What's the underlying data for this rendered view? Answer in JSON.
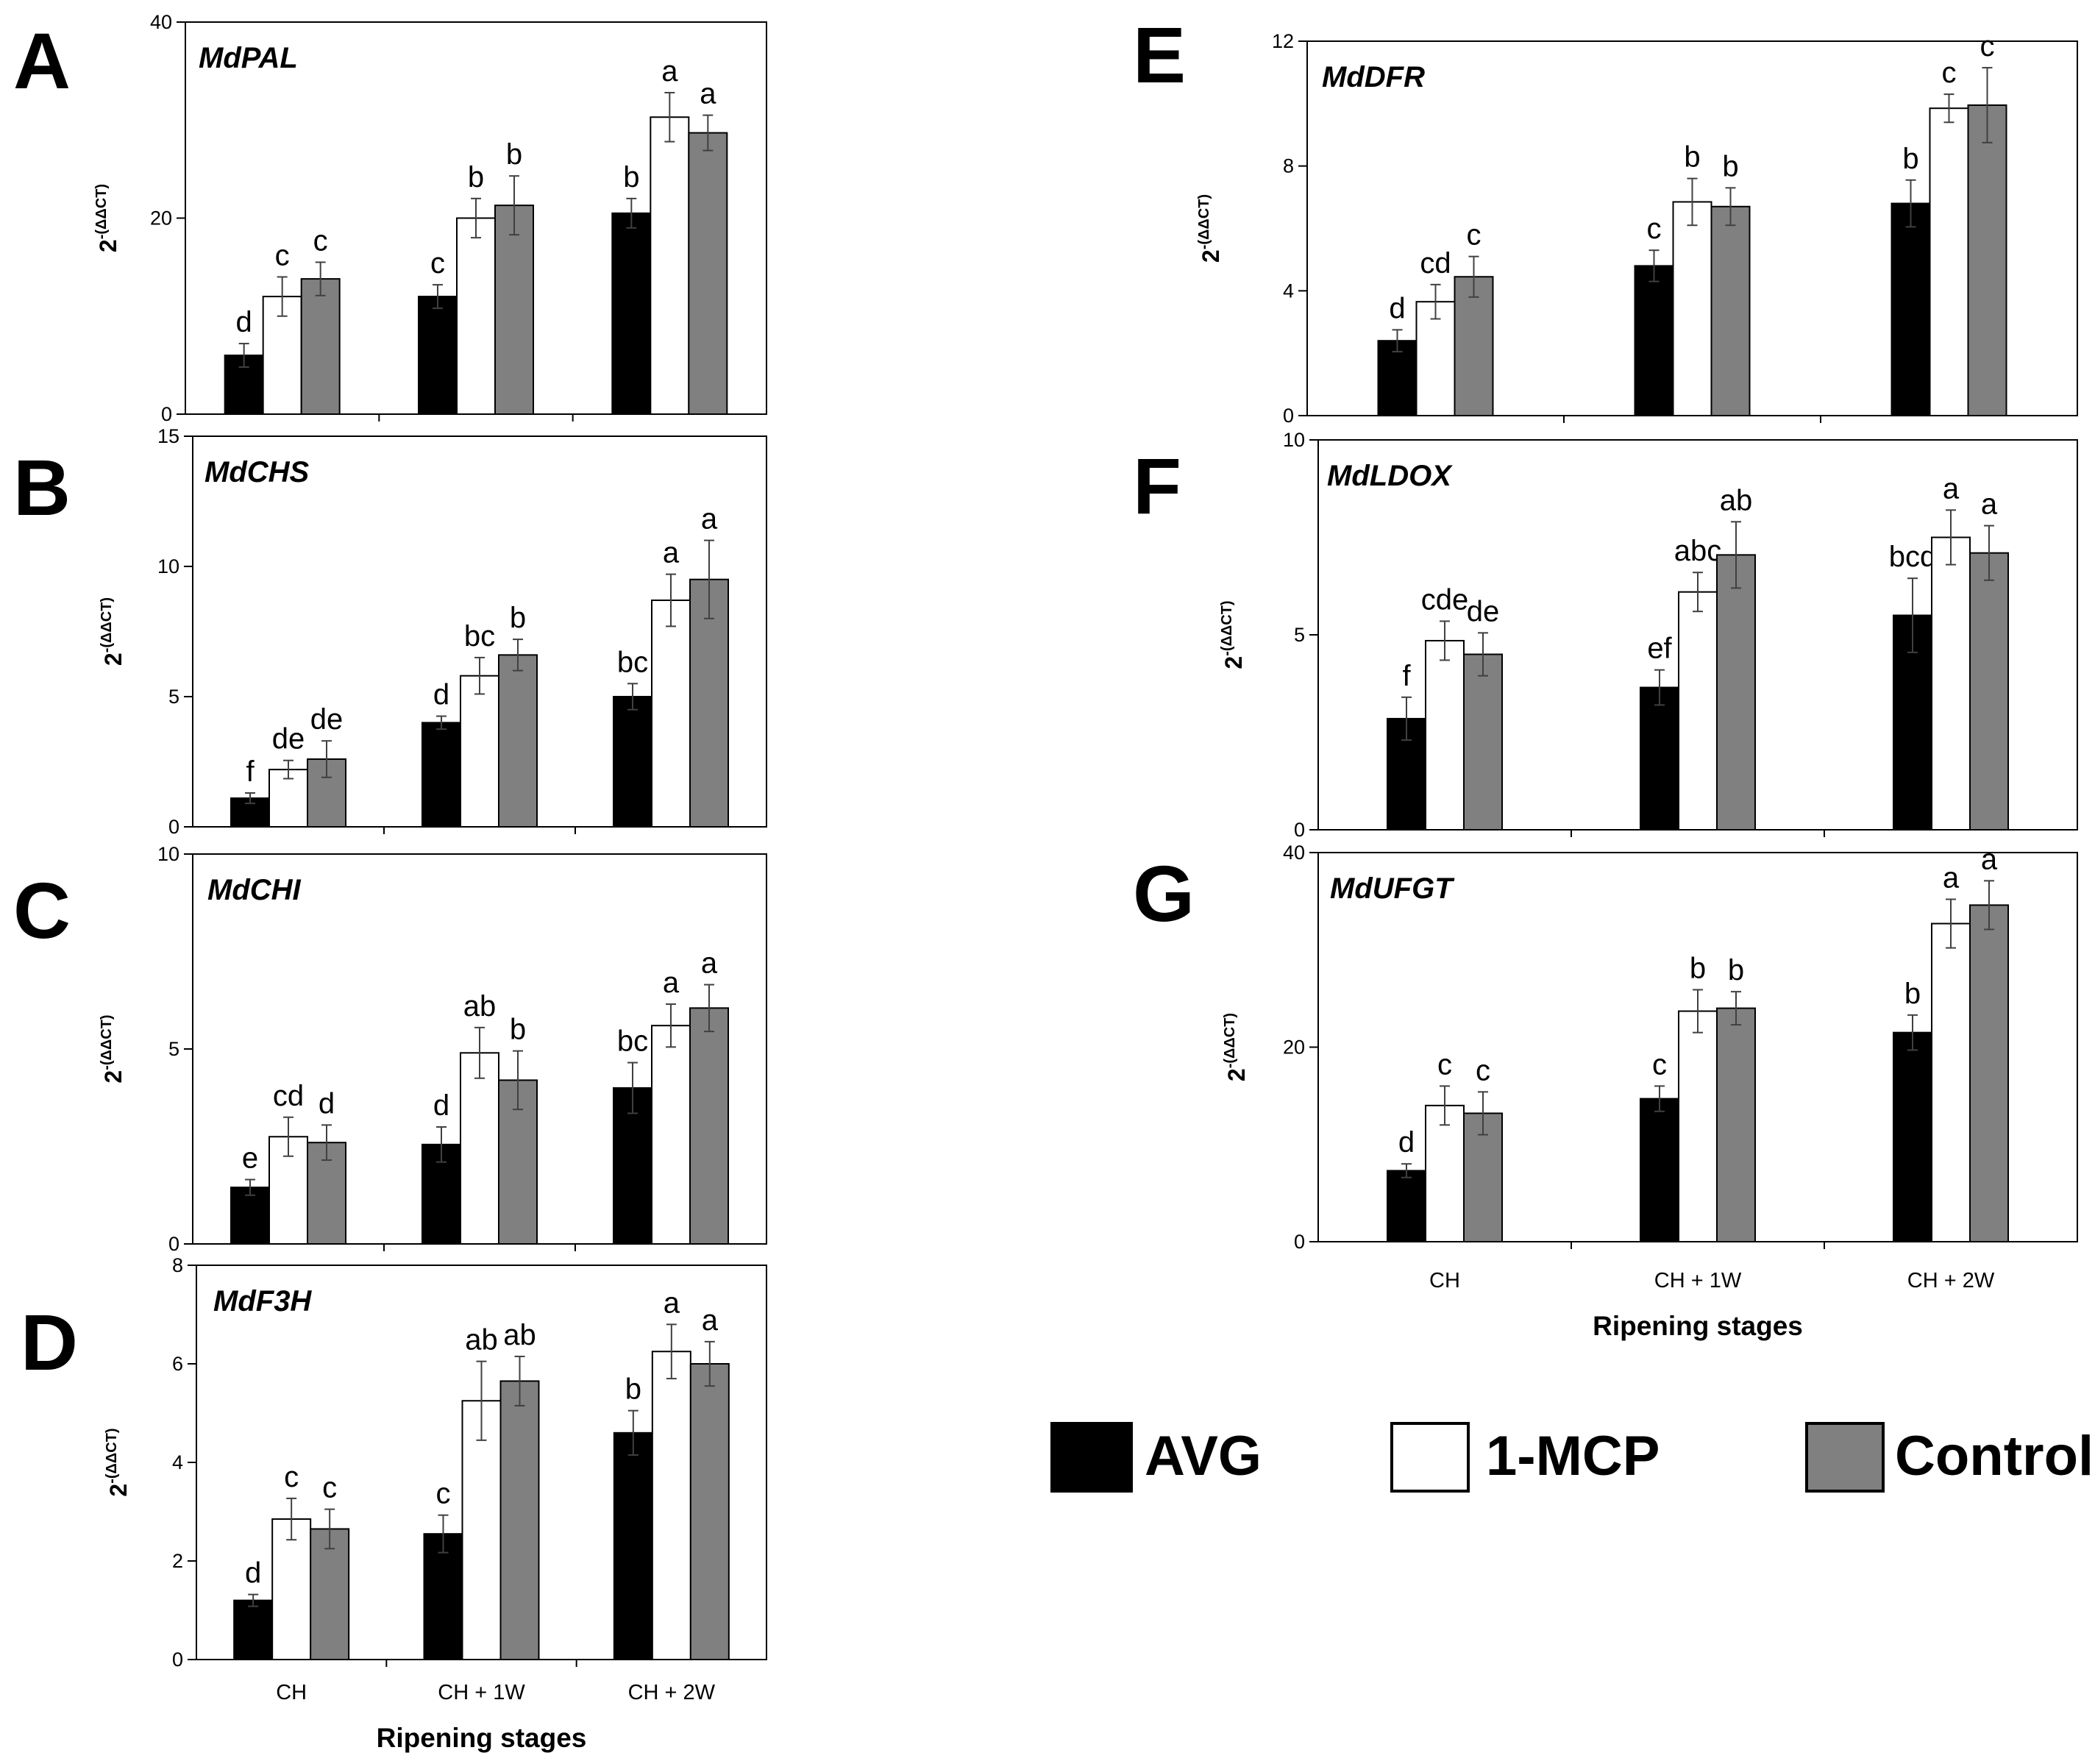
{
  "chart_data": [
    {
      "type": "bar",
      "panel": "A",
      "title": "MdPAL",
      "ylabel": "2-(ΔΔCT)",
      "ylim": [
        0,
        40
      ],
      "yticks": [
        0,
        20,
        40
      ],
      "categories": [
        "CH",
        "CH + 1W",
        "CH + 2W"
      ],
      "series": [
        {
          "name": "AVG",
          "values": [
            6,
            12,
            20.5
          ],
          "errors": [
            1.2,
            1.2,
            1.5
          ],
          "letters": [
            "d",
            "c",
            "b"
          ]
        },
        {
          "name": "1-MCP",
          "values": [
            12,
            20,
            30.3
          ],
          "errors": [
            2,
            2,
            2.5
          ],
          "letters": [
            "c",
            "b",
            "a"
          ]
        },
        {
          "name": "Control",
          "values": [
            13.8,
            21.3,
            28.7
          ],
          "errors": [
            1.7,
            3,
            1.8
          ],
          "letters": [
            "c",
            "b",
            "a"
          ]
        }
      ]
    },
    {
      "type": "bar",
      "panel": "B",
      "title": "MdCHS",
      "ylabel": "2-(ΔΔCT)",
      "ylim": [
        0,
        15
      ],
      "yticks": [
        0,
        5,
        10,
        15
      ],
      "categories": [
        "CH",
        "CH + 1W",
        "CH + 2W"
      ],
      "series": [
        {
          "name": "AVG",
          "values": [
            1.1,
            4,
            5
          ],
          "errors": [
            0.2,
            0.25,
            0.5
          ],
          "letters": [
            "f",
            "d",
            "bc"
          ]
        },
        {
          "name": "1-MCP",
          "values": [
            2.2,
            5.8,
            8.7
          ],
          "errors": [
            0.35,
            0.7,
            1
          ],
          "letters": [
            "de",
            "bc",
            "a"
          ]
        },
        {
          "name": "Control",
          "values": [
            2.6,
            6.6,
            9.5
          ],
          "errors": [
            0.7,
            0.6,
            1.5
          ],
          "letters": [
            "de",
            "b",
            "a"
          ]
        }
      ]
    },
    {
      "type": "bar",
      "panel": "C",
      "title": "MdCHI",
      "ylabel": "2-(ΔΔCT)",
      "ylim": [
        0,
        10
      ],
      "yticks": [
        0,
        5,
        10
      ],
      "categories": [
        "CH",
        "CH + 1W",
        "CH + 2W"
      ],
      "series": [
        {
          "name": "AVG",
          "values": [
            1.45,
            2.55,
            4
          ],
          "errors": [
            0.2,
            0.45,
            0.65
          ],
          "letters": [
            "e",
            "d",
            "bc"
          ]
        },
        {
          "name": "1-MCP",
          "values": [
            2.75,
            4.9,
            5.6
          ],
          "errors": [
            0.5,
            0.65,
            0.55
          ],
          "letters": [
            "cd",
            "ab",
            "a"
          ]
        },
        {
          "name": "Control",
          "values": [
            2.6,
            4.2,
            6.05
          ],
          "errors": [
            0.45,
            0.75,
            0.6
          ],
          "letters": [
            "d",
            "b",
            "a"
          ]
        }
      ]
    },
    {
      "type": "bar",
      "panel": "D",
      "title": "MdF3H",
      "ylabel": "2-(ΔΔCT)",
      "ylim": [
        0,
        8
      ],
      "yticks": [
        0,
        2,
        4,
        6,
        8
      ],
      "categories": [
        "CH",
        "CH + 1W",
        "CH + 2W"
      ],
      "series": [
        {
          "name": "AVG",
          "values": [
            1.2,
            2.55,
            4.6
          ],
          "errors": [
            0.12,
            0.38,
            0.45
          ],
          "letters": [
            "d",
            "c",
            "b"
          ]
        },
        {
          "name": "1-MCP",
          "values": [
            2.85,
            5.25,
            6.25
          ],
          "errors": [
            0.42,
            0.8,
            0.55
          ],
          "letters": [
            "c",
            "ab",
            "a"
          ]
        },
        {
          "name": "Control",
          "values": [
            2.65,
            5.65,
            6
          ],
          "errors": [
            0.4,
            0.5,
            0.45
          ],
          "letters": [
            "c",
            "ab",
            "a"
          ]
        }
      ],
      "xlabel": "Ripening stages"
    },
    {
      "type": "bar",
      "panel": "E",
      "title": "MdDFR",
      "ylabel": "2-(ΔΔCT)",
      "ylim": [
        0,
        12
      ],
      "yticks": [
        0,
        4,
        8,
        12
      ],
      "categories": [
        "CH",
        "CH + 1W",
        "CH + 2W"
      ],
      "series": [
        {
          "name": "AVG",
          "values": [
            2.4,
            4.8,
            6.8
          ],
          "errors": [
            0.35,
            0.5,
            0.75
          ],
          "letters": [
            "d",
            "c",
            "b"
          ]
        },
        {
          "name": "1-MCP",
          "values": [
            3.65,
            6.85,
            9.85
          ],
          "errors": [
            0.55,
            0.75,
            0.45
          ],
          "letters": [
            "cd",
            "b",
            "c"
          ]
        },
        {
          "name": "Control",
          "values": [
            4.45,
            6.7,
            9.95
          ],
          "errors": [
            0.65,
            0.6,
            1.2
          ],
          "letters": [
            "c",
            "b",
            "c"
          ]
        }
      ]
    },
    {
      "type": "bar",
      "panel": "F",
      "title": "MdLDOX",
      "ylabel": "2-(ΔΔCT)",
      "ylim": [
        0,
        10
      ],
      "yticks": [
        0,
        5,
        10
      ],
      "categories": [
        "CH",
        "CH + 1W",
        "CH + 2W"
      ],
      "series": [
        {
          "name": "AVG",
          "values": [
            2.85,
            3.65,
            5.5
          ],
          "errors": [
            0.55,
            0.45,
            0.95
          ],
          "letters": [
            "f",
            "ef",
            "bcd"
          ]
        },
        {
          "name": "1-MCP",
          "values": [
            4.85,
            6.1,
            7.5
          ],
          "errors": [
            0.5,
            0.5,
            0.7
          ],
          "letters": [
            "cde",
            "abc",
            "a"
          ]
        },
        {
          "name": "Control",
          "values": [
            4.5,
            7.05,
            7.1
          ],
          "errors": [
            0.55,
            0.85,
            0.7
          ],
          "letters": [
            "de",
            "ab",
            "a"
          ]
        }
      ]
    },
    {
      "type": "bar",
      "panel": "G",
      "title": "MdUFGT",
      "ylabel": "2-(ΔΔCT)",
      "ylim": [
        0,
        40
      ],
      "yticks": [
        0,
        20,
        40
      ],
      "categories": [
        "CH",
        "CH + 1W",
        "CH + 2W"
      ],
      "series": [
        {
          "name": "AVG",
          "values": [
            7.3,
            14.7,
            21.5
          ],
          "errors": [
            0.7,
            1.3,
            1.8
          ],
          "letters": [
            "d",
            "c",
            "b"
          ]
        },
        {
          "name": "1-MCP",
          "values": [
            14,
            23.7,
            32.7
          ],
          "errors": [
            2,
            2.2,
            2.5
          ],
          "letters": [
            "c",
            "b",
            "a"
          ]
        },
        {
          "name": "Control",
          "values": [
            13.2,
            24,
            34.6
          ],
          "errors": [
            2.2,
            1.7,
            2.5
          ],
          "letters": [
            "c",
            "b",
            "a"
          ]
        }
      ],
      "xlabel": "Ripening stages"
    }
  ],
  "legend": [
    {
      "name": "AVG",
      "color": "#000000"
    },
    {
      "name": "1-MCP",
      "color": "#ffffff"
    },
    {
      "name": "Control",
      "color": "#808080"
    }
  ],
  "colors": {
    "avg": "#000000",
    "mcp": "#ffffff",
    "control": "#808080",
    "axis": "#000000",
    "error": "#404040"
  }
}
